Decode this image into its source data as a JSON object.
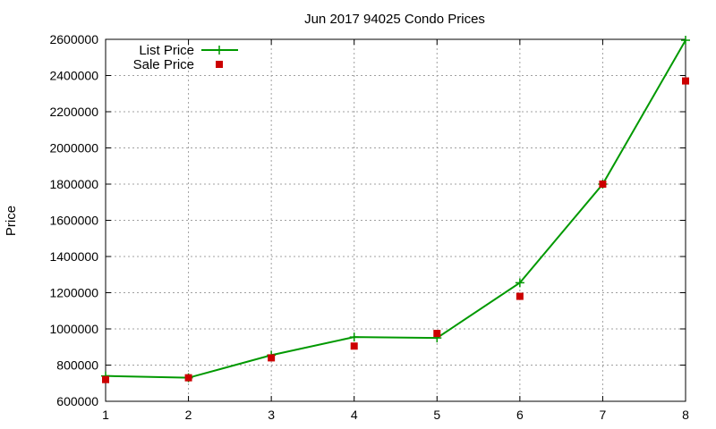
{
  "chart_data": {
    "type": "line",
    "title": "Jun 2017 94025 Condo Prices",
    "xlabel": "",
    "ylabel": "Price",
    "xlim": [
      1,
      8
    ],
    "ylim": [
      600000,
      2600000
    ],
    "x_ticks": [
      1,
      2,
      3,
      4,
      5,
      6,
      7,
      8
    ],
    "y_ticks": [
      600000,
      800000,
      1000000,
      1200000,
      1400000,
      1600000,
      1800000,
      2000000,
      2200000,
      2400000,
      2600000
    ],
    "grid": true,
    "legend": "top-left",
    "series": [
      {
        "name": "List Price",
        "style": "line+plus",
        "color": "#009900",
        "x": [
          1,
          2,
          3,
          4,
          5,
          6,
          7,
          8
        ],
        "values": [
          740000,
          730000,
          855000,
          955000,
          950000,
          1255000,
          1800000,
          2595000
        ]
      },
      {
        "name": "Sale Price",
        "style": "square-points",
        "color": "#cc0000",
        "x": [
          1,
          2,
          3,
          4,
          5,
          6,
          7,
          8
        ],
        "values": [
          720000,
          730000,
          840000,
          905000,
          975000,
          1180000,
          1800000,
          2370000
        ]
      }
    ]
  }
}
